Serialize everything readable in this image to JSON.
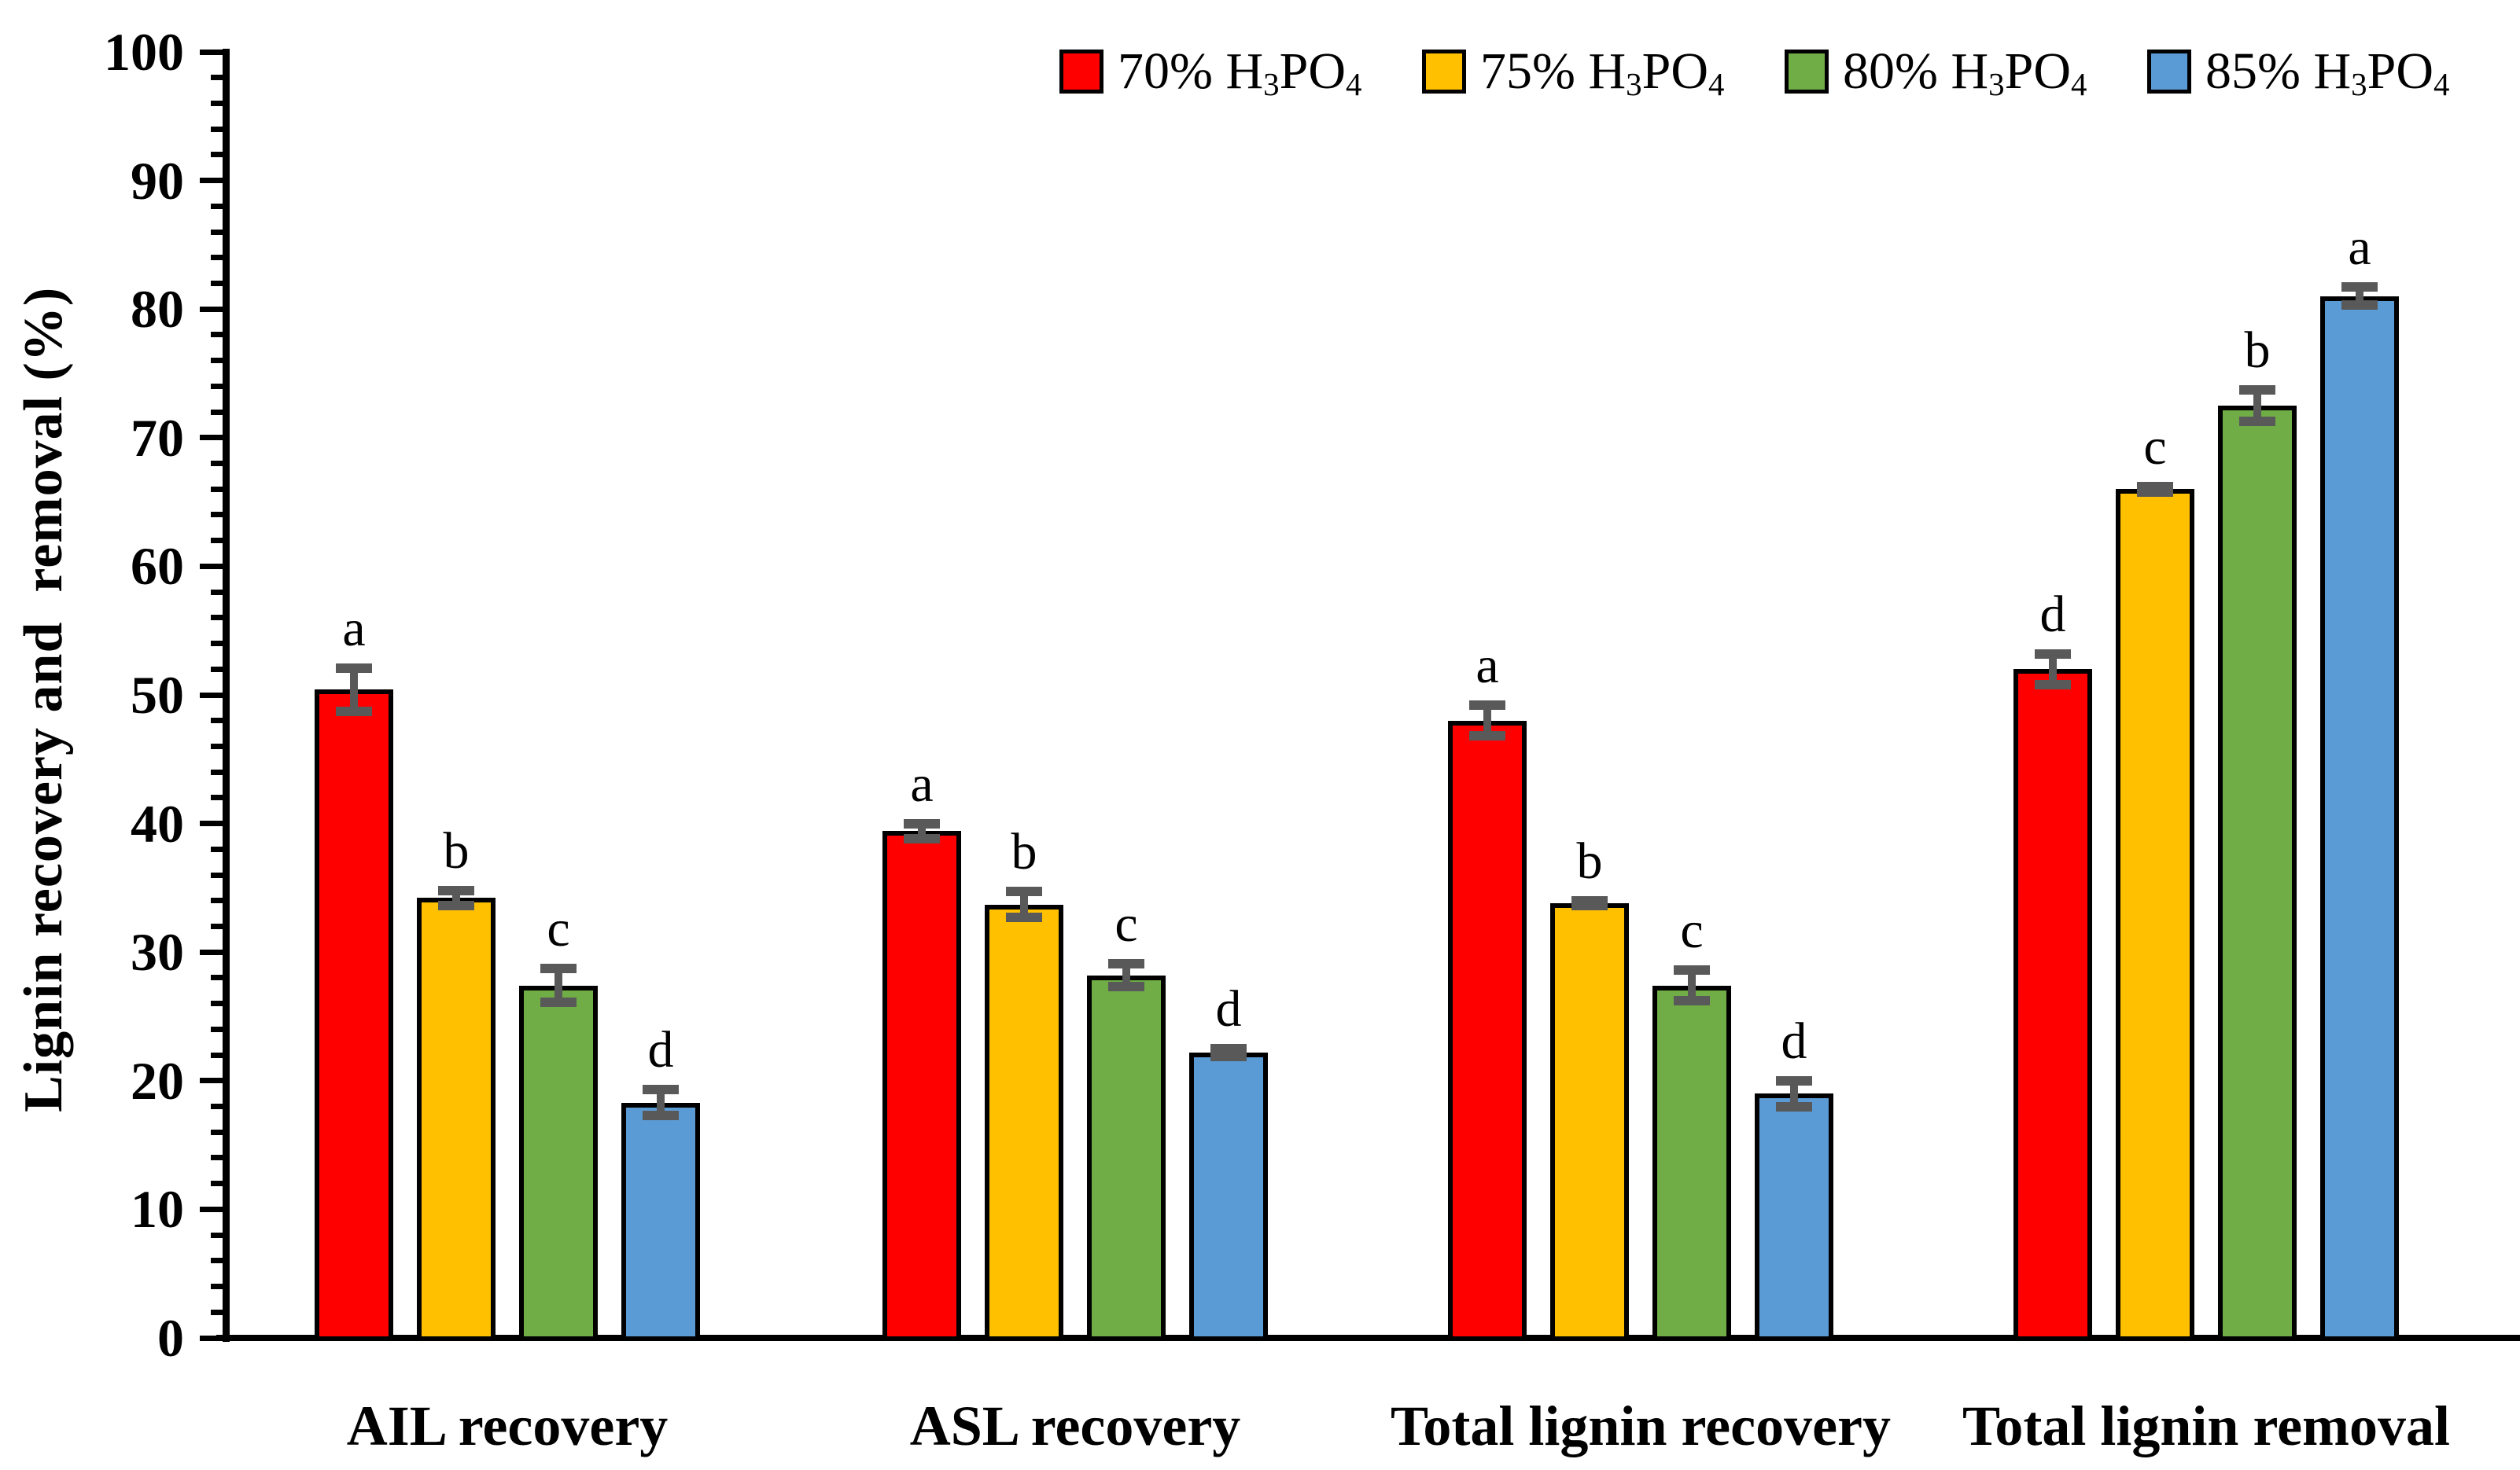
{
  "chart_data": {
    "type": "bar",
    "title": "",
    "ylabel": "Lignin recovery and  removal (%)",
    "xlabel": "",
    "ylim": [
      0,
      100
    ],
    "y_major_step": 10,
    "y_minor_step": 2,
    "y_tick_labels": [
      "0",
      "10",
      "20",
      "30",
      "40",
      "50",
      "60",
      "70",
      "80",
      "90",
      "100"
    ],
    "grid": "off",
    "legend_position": "top-right",
    "categories": [
      "AIL recovery",
      "ASL recovery",
      "Total lignin recovery",
      "Total lignin removal"
    ],
    "series": [
      {
        "name": "70% H3PO4",
        "label_parts": {
          "pre": "70% H",
          "sub1": "3",
          "mid": "PO",
          "sub2": "4"
        },
        "color": "#FF0000",
        "values": [
          50.4,
          39.4,
          48.0,
          52.0
        ],
        "errors": [
          1.7,
          0.6,
          1.2,
          1.2
        ],
        "letters": [
          "a",
          "a",
          "a",
          "d"
        ]
      },
      {
        "name": "75% H3PO4",
        "label_parts": {
          "pre": "75% H",
          "sub1": "3",
          "mid": "PO",
          "sub2": "4"
        },
        "color": "#FFC000",
        "values": [
          34.2,
          33.7,
          33.8,
          66.0
        ],
        "errors": [
          0.6,
          1.0,
          0.2,
          0.2
        ],
        "letters": [
          "b",
          "b",
          "b",
          "c"
        ]
      },
      {
        "name": "80% H3PO4",
        "label_parts": {
          "pre": "80% H",
          "sub1": "3",
          "mid": "PO",
          "sub2": "4"
        },
        "color": "#70AD47",
        "values": [
          27.4,
          28.2,
          27.4,
          72.5
        ],
        "errors": [
          1.3,
          0.9,
          1.2,
          1.2
        ],
        "letters": [
          "c",
          "c",
          "c",
          "b"
        ]
      },
      {
        "name": "85% H3PO4",
        "label_parts": {
          "pre": "85% H",
          "sub1": "3",
          "mid": "PO",
          "sub2": "4"
        },
        "color": "#5B9BD5",
        "values": [
          18.3,
          22.2,
          19.0,
          81.0
        ],
        "errors": [
          1.0,
          0.3,
          1.0,
          0.7
        ],
        "letters": [
          "d",
          "d",
          "d",
          "a"
        ]
      }
    ],
    "colors": {
      "axis": "#000000",
      "error_bar": "#595959",
      "background": "#FFFFFF"
    }
  }
}
